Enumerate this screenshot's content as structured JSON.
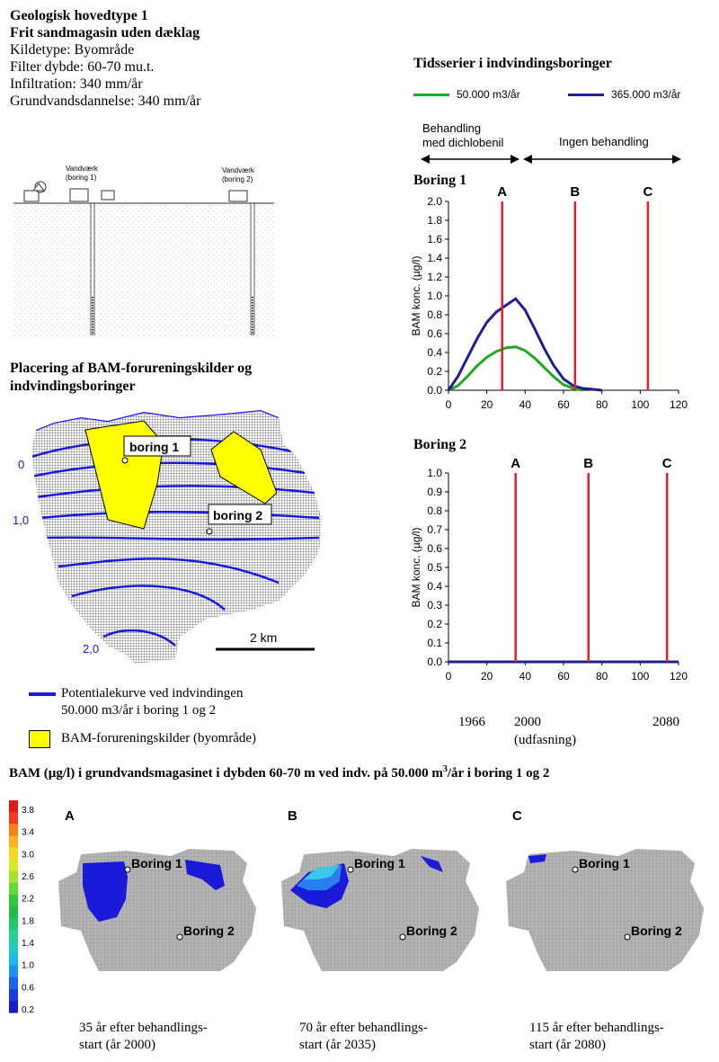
{
  "info": {
    "title1": "Geologisk hovedtype 1",
    "title2": "Frit sandmagasin uden dæklag",
    "lines": [
      "Kildetype: Byområde",
      "Filter dybde: 60-70 mu.t.",
      "Infiltration: 340 mm/år",
      "Grundvandsdannelse: 340 mm/år"
    ]
  },
  "cross_section": {
    "label1a": "Vandværk",
    "label1b": "(boring 1)",
    "label2a": "Vandværk",
    "label2b": "(boring 2)"
  },
  "map": {
    "title1": "Placering af BAM-forureningskilder og",
    "title2": "indvindingsboringer",
    "label_boring1": "boring 1",
    "label_boring2": "boring 2",
    "contour_labels": [
      "0",
      "1,0",
      "2,0"
    ],
    "scale_label": "2 km",
    "legend_line1": "Potentialekurve ved indvindingen",
    "legend_line2": "50.000 m3/år i boring 1 og 2",
    "legend_yellow": "BAM-forureningskilder (byområde)",
    "colors": {
      "contour": "#1a1adb",
      "source": "#ffff00"
    }
  },
  "timeseries": {
    "title": "Tidsserier i indvindingsboringer",
    "treat_label1": "Behandling",
    "treat_label2": "med dichlobenil",
    "no_treat_label": "Ingen behandling",
    "years": [
      "1966",
      "2000",
      "2080"
    ],
    "year_note": "(udfasning)"
  },
  "chart_data": [
    {
      "type": "line",
      "title": "Boring 1",
      "ylabel": "BAM konc. (µg/l)",
      "xlim": [
        0,
        120
      ],
      "ylim": [
        0,
        2.0
      ],
      "xticks": [
        "0",
        "20",
        "40",
        "60",
        "80",
        "100",
        "120"
      ],
      "yticks": [
        "0.0",
        "0.2",
        "0.4",
        "0.6",
        "0.8",
        "1.0",
        "1.2",
        "1.4",
        "1.6",
        "1.8",
        "2.0"
      ],
      "vlines": [
        {
          "label": "A",
          "x": 28
        },
        {
          "label": "B",
          "x": 66
        },
        {
          "label": "C",
          "x": 104
        }
      ],
      "series": [
        {
          "name": "50.000 m3/år",
          "color": "#22a822",
          "x": [
            0,
            5,
            10,
            15,
            20,
            25,
            30,
            35,
            40,
            45,
            50,
            55,
            60,
            65,
            70
          ],
          "y": [
            0,
            0.05,
            0.15,
            0.26,
            0.35,
            0.41,
            0.45,
            0.46,
            0.42,
            0.34,
            0.24,
            0.14,
            0.06,
            0.02,
            0
          ]
        },
        {
          "name": "365.000 m3/år",
          "color": "#1f1f8f",
          "x": [
            0,
            5,
            10,
            15,
            20,
            25,
            30,
            35,
            40,
            45,
            50,
            55,
            60,
            65,
            70,
            75,
            80
          ],
          "y": [
            0,
            0.15,
            0.35,
            0.55,
            0.72,
            0.83,
            0.9,
            0.97,
            0.85,
            0.65,
            0.44,
            0.26,
            0.12,
            0.05,
            0.02,
            0.01,
            0
          ]
        }
      ]
    },
    {
      "type": "line",
      "title": "Boring 2",
      "ylabel": "BAM konc. (µg/l)",
      "xlim": [
        0,
        120
      ],
      "ylim": [
        0,
        1.0
      ],
      "xticks": [
        "0",
        "20",
        "40",
        "60",
        "80",
        "100",
        "120"
      ],
      "yticks": [
        "0.0",
        "0.1",
        "0.2",
        "0.3",
        "0.4",
        "0.5",
        "0.6",
        "0.7",
        "0.8",
        "0.9",
        "1.0"
      ],
      "vlines": [
        {
          "label": "A",
          "x": 35
        },
        {
          "label": "B",
          "x": 73
        },
        {
          "label": "C",
          "x": 114
        }
      ],
      "series": [
        {
          "name": "50.000 m3/år",
          "color": "#22a822",
          "x": [
            0,
            120
          ],
          "y": [
            0,
            0
          ]
        },
        {
          "name": "365.000 m3/år",
          "color": "#1f1f8f",
          "x": [
            0,
            120
          ],
          "y": [
            0,
            0
          ]
        }
      ]
    }
  ],
  "bottom": {
    "title": "BAM (µg/l) i grundvandsmagasinet i dybden 60-70 m ved indv. på 50.000 m",
    "title_sup": "3",
    "title_end": "/år i boring 1 og 2",
    "colorbar": {
      "labels": [
        "3.8",
        "3.4",
        "3.0",
        "2.6",
        "2.2",
        "1.8",
        "1.4",
        "1.0",
        "0.6",
        "0.2"
      ],
      "colors": [
        "#e31a1c",
        "#f03c1e",
        "#f7801f",
        "#fdb221",
        "#f4d821",
        "#d8e82a",
        "#a8e030",
        "#66d838",
        "#33c83c",
        "#22b84a",
        "#22c86a",
        "#2ad08c",
        "#26c8c0",
        "#20b8e8",
        "#1e90f0",
        "#1e64e8",
        "#1d3cd8",
        "#1a1ac8"
      ]
    },
    "panels": [
      {
        "letter": "A",
        "b1": "Boring 1",
        "b2": "Boring 2",
        "cap1": "35 år efter behandlings-",
        "cap2": "start (år 2000)"
      },
      {
        "letter": "B",
        "b1": "Boring 1",
        "b2": "Boring 2",
        "cap1": "70 år efter behandlings-",
        "cap2": "start (år 2035)"
      },
      {
        "letter": "C",
        "b1": "Boring 1",
        "b2": "Boring 2",
        "cap1": "115 år efter behandlings-",
        "cap2": "start (år 2080)"
      }
    ]
  }
}
